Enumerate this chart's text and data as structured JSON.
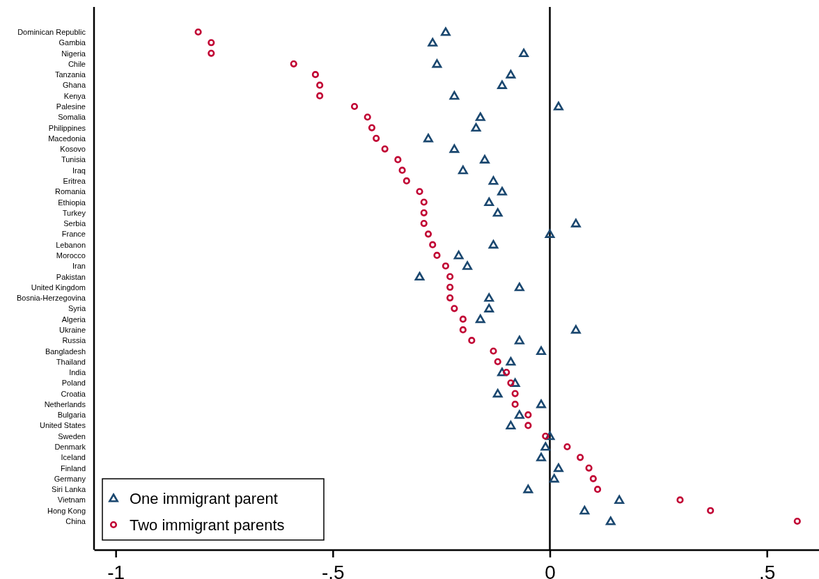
{
  "chart_data": {
    "type": "scatter",
    "orientation": "horizontal",
    "categories": [
      "Dominican Republic",
      "Gambia",
      "Nigeria",
      "Chile",
      "Tanzania",
      "Ghana",
      "Kenya",
      "Palesine",
      "Somalia",
      "Philippines",
      "Macedonia",
      "Kosovo",
      "Tunisia",
      "Iraq",
      "Eritrea",
      "Romania",
      "Ethiopia",
      "Turkey",
      "Serbia",
      "France",
      "Lebanon",
      "Morocco",
      "Iran",
      "Pakistan",
      "United Kingdom",
      "Bosnia-Herzegovina",
      "Syria",
      "Algeria",
      "Ukraine",
      "Russia",
      "Bangladesh",
      "Thailand",
      "India",
      "Poland",
      "Croatia",
      "Netherlands",
      "Bulgaria",
      "United States",
      "Sweden",
      "Denmark",
      "Iceland",
      "Finland",
      "Germany",
      "Siri Lanka",
      "Vietnam",
      "Hong Kong",
      "China"
    ],
    "series": [
      {
        "name": "One immigrant parent",
        "color": "#1a476f",
        "marker": "triangle",
        "values": [
          -0.24,
          -0.27,
          -0.06,
          -0.26,
          -0.09,
          -0.11,
          -0.22,
          0.02,
          -0.16,
          -0.17,
          -0.28,
          -0.22,
          -0.15,
          -0.2,
          -0.13,
          -0.11,
          -0.14,
          -0.12,
          0.06,
          0.0,
          -0.13,
          -0.21,
          -0.19,
          -0.3,
          -0.07,
          -0.14,
          -0.14,
          -0.16,
          0.06,
          -0.07,
          -0.02,
          -0.09,
          -0.11,
          -0.08,
          -0.12,
          -0.02,
          -0.07,
          -0.09,
          0.0,
          -0.01,
          -0.02,
          0.02,
          0.01,
          -0.05,
          0.16,
          0.08,
          0.14
        ]
      },
      {
        "name": "Two immigrant parents",
        "color": "#c10534",
        "marker": "circle",
        "values": [
          -0.81,
          -0.78,
          -0.78,
          -0.59,
          -0.54,
          -0.53,
          -0.53,
          -0.45,
          -0.42,
          -0.41,
          -0.4,
          -0.38,
          -0.35,
          -0.34,
          -0.33,
          -0.3,
          -0.29,
          -0.29,
          -0.29,
          -0.28,
          -0.27,
          -0.26,
          -0.24,
          -0.23,
          -0.23,
          -0.23,
          -0.22,
          -0.2,
          -0.2,
          -0.18,
          -0.13,
          -0.12,
          -0.1,
          -0.09,
          -0.08,
          -0.08,
          -0.05,
          -0.05,
          -0.01,
          0.04,
          0.07,
          0.09,
          0.1,
          0.11,
          0.3,
          0.37,
          0.57
        ]
      }
    ],
    "xlim": [
      -1.05,
      0.62
    ],
    "xticks": [
      {
        "value": -1,
        "label": "-1"
      },
      {
        "value": -0.5,
        "label": "-.5"
      },
      0,
      {
        "value": 0.5,
        "label": ".5"
      }
    ],
    "ref_lines": [
      {
        "axis": "x",
        "value": 0,
        "color": "#000000"
      }
    ],
    "legend": "bottom left"
  }
}
